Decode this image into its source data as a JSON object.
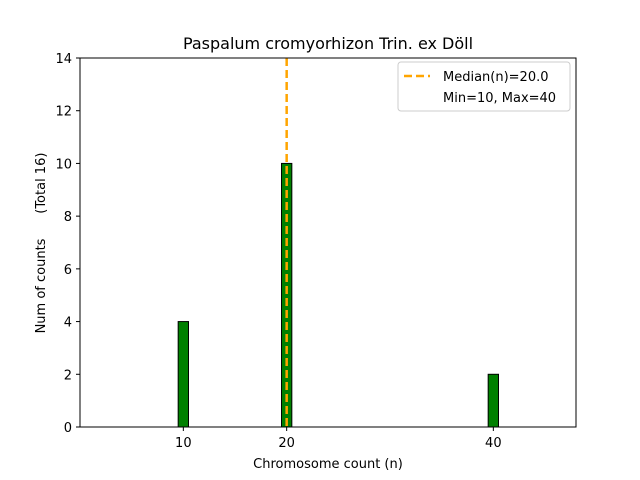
{
  "chart_data": {
    "type": "bar",
    "title": "Paspalum cromyorhizon Trin. ex Döll",
    "xlabel": "Chromosome count (n)",
    "ylabel": "Num of counts      (Total 16)",
    "xlim": [
      0,
      48
    ],
    "ylim": [
      0,
      14
    ],
    "xticks": [
      10,
      20,
      40
    ],
    "yticks": [
      0,
      2,
      4,
      6,
      8,
      10,
      12,
      14
    ],
    "bar_width": 1,
    "x": [
      10,
      20,
      40
    ],
    "values": [
      4,
      10,
      2
    ],
    "bar_color": "#008000",
    "bar_edge_color": "#000000",
    "median": 20.0,
    "median_color": "#FFA500",
    "legend": {
      "location": "upper right",
      "entries": [
        "Median(n)=20.0",
        "Min=10, Max=40"
      ]
    },
    "grid": false
  }
}
